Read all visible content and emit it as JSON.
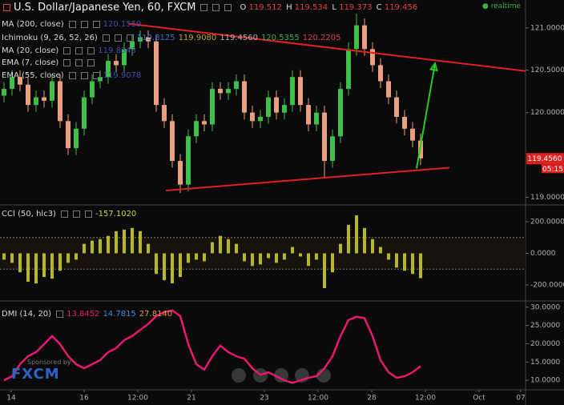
{
  "header": {
    "title": "U.S. Dollar/Japanese Yen, 60, FXCM",
    "ohlc": [
      {
        "key": "O",
        "value": "119.512"
      },
      {
        "key": "H",
        "value": "119.534"
      },
      {
        "key": "L",
        "value": "119.373"
      },
      {
        "key": "C",
        "value": "119.456"
      }
    ],
    "status": "realtime"
  },
  "indicators": [
    {
      "label": "MA (200, close)",
      "values": [
        "120.1559"
      ],
      "colors": [
        "#3a4fb0"
      ],
      "top": 25
    },
    {
      "label": "Ichimoku (9, 26, 52, 26)",
      "values": [
        "119.8125",
        "119.9080",
        "119.4560",
        "120.5355",
        "120.2205"
      ],
      "colors": [
        "#3a6fd0",
        "#c0a030",
        "#b0b0b0",
        "#3fae49",
        "#e04040"
      ],
      "top": 42
    },
    {
      "label": "MA (20, close)",
      "values": [
        "119.8343"
      ],
      "colors": [
        "#3a4fb0"
      ],
      "top": 58
    },
    {
      "label": "EMA (7, close)",
      "values": [],
      "colors": [],
      "top": 73
    },
    {
      "label": "EMA (55, close)",
      "values": [
        "119.9078"
      ],
      "colors": [
        "#3a4fb0"
      ],
      "top": 89
    }
  ],
  "sponsor": {
    "text": "Sponsored by",
    "name": "FXCM"
  },
  "chart_data": [
    {
      "type": "candlestick",
      "xlim": [
        0,
        65.6
      ],
      "xticks": [
        {
          "value": 1.4,
          "label": "14"
        },
        {
          "value": 10.5,
          "label": "16"
        },
        {
          "value": 17.2,
          "label": "12:00"
        },
        {
          "value": 23.9,
          "label": "21"
        },
        {
          "value": 33.0,
          "label": "23"
        },
        {
          "value": 39.7,
          "label": "12:00"
        },
        {
          "value": 46.4,
          "label": "28"
        },
        {
          "value": 53.1,
          "label": "12:00"
        },
        {
          "value": 59.8,
          "label": "Oct"
        },
        {
          "value": 65.0,
          "label": "07"
        }
      ],
      "ylim": [
        118.92,
        121.31
      ],
      "yticks": [
        {
          "value": 121.0,
          "label": "121.0000"
        },
        {
          "value": 120.5,
          "label": "120.5000"
        },
        {
          "value": 120.0,
          "label": "120.0000"
        },
        {
          "value": 119.0,
          "label": "119.0000"
        }
      ],
      "up_color": "#3fbf4a",
      "down_color": "#e8a080",
      "open": [
        120.2,
        120.28,
        120.42,
        120.33,
        120.09,
        120.18,
        120.14,
        120.37,
        119.9,
        119.58,
        119.81,
        120.18,
        120.37,
        120.42,
        120.61,
        120.56,
        120.75,
        120.84,
        120.89,
        120.84,
        120.09,
        119.9,
        119.43,
        119.15,
        119.72,
        119.9,
        119.86,
        120.28,
        120.23,
        120.28,
        120.37,
        120.0,
        119.9,
        119.95,
        120.18,
        120.0,
        120.09,
        120.42,
        120.09,
        119.86,
        120.0,
        119.43,
        119.72,
        120.28,
        120.75,
        121.03,
        120.75,
        120.56,
        120.37,
        120.18,
        119.95,
        119.81,
        119.67
      ],
      "high": [
        120.36,
        120.5,
        120.5,
        120.41,
        120.26,
        120.26,
        120.45,
        120.45,
        119.98,
        119.89,
        120.26,
        120.45,
        120.5,
        120.69,
        120.69,
        120.83,
        120.92,
        120.97,
        120.97,
        120.92,
        120.17,
        119.98,
        119.51,
        119.8,
        119.98,
        119.98,
        120.36,
        120.36,
        120.36,
        120.45,
        120.45,
        120.08,
        120.03,
        120.26,
        120.26,
        120.17,
        120.5,
        120.5,
        120.17,
        120.08,
        120.08,
        119.8,
        120.36,
        120.83,
        121.17,
        121.11,
        120.83,
        120.64,
        120.45,
        120.26,
        120.03,
        119.89,
        119.75
      ],
      "low": [
        120.12,
        120.2,
        120.25,
        120.01,
        120.01,
        120.06,
        120.06,
        119.82,
        119.5,
        119.5,
        119.73,
        120.1,
        120.29,
        120.34,
        120.48,
        120.48,
        120.67,
        120.76,
        120.76,
        120.01,
        119.82,
        119.35,
        119.05,
        119.07,
        119.64,
        119.78,
        119.78,
        120.15,
        120.15,
        120.2,
        119.92,
        119.82,
        119.82,
        119.87,
        119.92,
        119.92,
        120.01,
        120.01,
        119.78,
        119.78,
        119.23,
        119.35,
        119.64,
        120.2,
        120.67,
        120.67,
        120.48,
        120.29,
        120.1,
        119.87,
        119.73,
        119.59,
        119.38
      ],
      "close": [
        120.28,
        120.42,
        120.33,
        120.09,
        120.18,
        120.14,
        120.37,
        119.9,
        119.58,
        119.81,
        120.18,
        120.37,
        120.42,
        120.61,
        120.56,
        120.75,
        120.84,
        120.89,
        120.84,
        120.09,
        119.9,
        119.43,
        119.15,
        119.72,
        119.9,
        119.86,
        120.28,
        120.23,
        120.28,
        120.37,
        120.0,
        119.9,
        119.95,
        120.18,
        120.0,
        120.09,
        120.42,
        120.09,
        119.86,
        120.0,
        119.43,
        119.72,
        120.28,
        120.75,
        121.03,
        120.75,
        120.56,
        120.37,
        120.18,
        119.95,
        119.81,
        119.67,
        119.46
      ],
      "trendlines": [
        {
          "color": "#e02020",
          "x": [
            16.0,
            65.6
          ],
          "y": [
            121.05,
            120.49
          ],
          "arrow": false
        },
        {
          "color": "#e02020",
          "x": [
            20.7,
            56.1
          ],
          "y": [
            119.08,
            119.35
          ],
          "arrow": false
        },
        {
          "color": "#22cc22",
          "x": [
            52.0,
            54.3
          ],
          "y": [
            119.34,
            120.58
          ],
          "arrow": true
        }
      ],
      "last_price": {
        "value": 119.456,
        "label": "119.4560",
        "color": "#e02020"
      },
      "countdown": "05:15"
    },
    {
      "type": "bar",
      "label": "CCI (50, hlc3)",
      "value_text": "-157.1020",
      "value_color": "#d8d840",
      "color": "#b8b820",
      "ylim": [
        -296,
        301
      ],
      "yticks": [
        {
          "value": 200,
          "label": "200.0000"
        },
        {
          "value": 0,
          "label": "0.0000"
        },
        {
          "value": -200,
          "label": "-200.0000"
        }
      ],
      "bands": [
        -100,
        100
      ],
      "values": [
        -40,
        -60,
        -120,
        -180,
        -190,
        -150,
        -160,
        -110,
        -60,
        -40,
        60,
        80,
        90,
        110,
        140,
        150,
        160,
        140,
        60,
        -130,
        -170,
        -190,
        -150,
        -60,
        -40,
        -50,
        70,
        110,
        90,
        60,
        -50,
        -80,
        -70,
        -30,
        -60,
        -40,
        40,
        -20,
        -80,
        -40,
        -220,
        -120,
        60,
        180,
        240,
        160,
        90,
        40,
        -40,
        -90,
        -110,
        -130,
        -157.1
      ]
    },
    {
      "type": "line",
      "label": "DMI (14, 20)",
      "value_texts": [
        "13.8452",
        "14.7815",
        "27.8140"
      ],
      "value_colors": [
        "#e8196e",
        "#3a8fe0",
        "#e8a030"
      ],
      "ylim": [
        7.4,
        31.5
      ],
      "yticks": [
        {
          "value": 30,
          "label": "30.0000"
        },
        {
          "value": 25,
          "label": "25.0000"
        },
        {
          "value": 20,
          "label": "20.0000"
        },
        {
          "value": 15,
          "label": "15.0000"
        },
        {
          "value": 10,
          "label": "10.0000"
        }
      ],
      "series": [
        {
          "color": "#e8196e",
          "values": [
            10,
            11.1,
            14.4,
            16.6,
            17.7,
            19.9,
            22.1,
            19.9,
            16.6,
            14.4,
            13.3,
            14.4,
            15.5,
            17.7,
            18.8,
            21,
            22.1,
            23.8,
            25.4,
            27.6,
            28.7,
            29.1,
            27.6,
            19.9,
            14.4,
            12.9,
            16.6,
            19.5,
            17.7,
            16.6,
            15.9,
            13.3,
            11.5,
            12.2,
            11.1,
            10,
            9.3,
            10,
            10.7,
            11.1,
            13.3,
            16.6,
            22.1,
            26.5,
            27.4,
            27,
            22.1,
            15.5,
            12.2,
            10.7,
            11.1,
            12.2,
            13.85
          ]
        }
      ]
    }
  ]
}
